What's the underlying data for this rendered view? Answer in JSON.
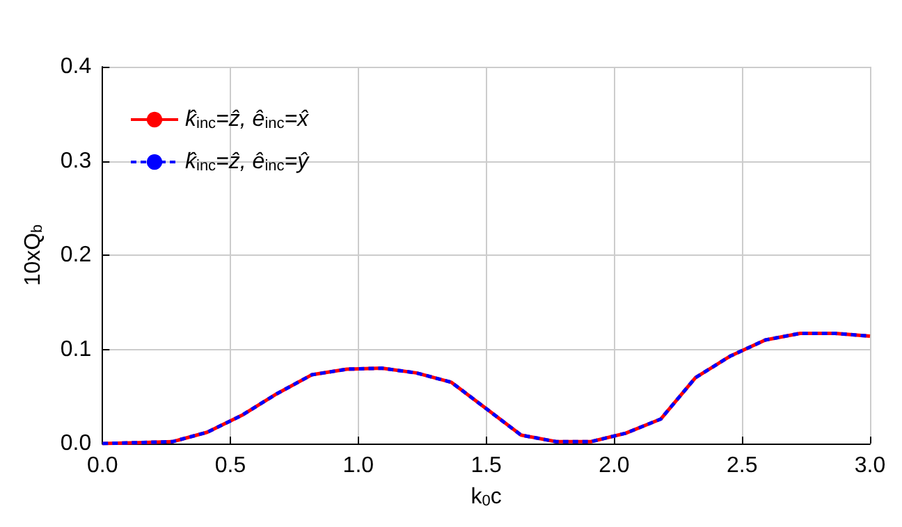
{
  "chart_data": {
    "type": "line",
    "xlabel": "k$_{0}$c",
    "ylabel": "10xQ$_{b}$",
    "x": [
      0,
      0.136,
      0.273,
      0.409,
      0.545,
      0.682,
      0.818,
      0.955,
      1.091,
      1.227,
      1.364,
      1.5,
      1.636,
      1.773,
      1.909,
      2.045,
      2.182,
      2.318,
      2.455,
      2.591,
      2.727,
      2.864,
      3.0
    ],
    "series": [
      {
        "name": "k̂$_{inc}$=ẑ, ê$_{inc}$=x̂",
        "color": "#ff0000",
        "line_style": "solid",
        "values": [
          0,
          0.001,
          0.002,
          0.012,
          0.03,
          0.053,
          0.073,
          0.079,
          0.08,
          0.075,
          0.065,
          0.037,
          0.009,
          0.002,
          0.002,
          0.011,
          0.026,
          0.07,
          0.093,
          0.11,
          0.117,
          0.117,
          0.114
        ]
      },
      {
        "name": "k̂$_{inc}$=ẑ, ê$_{inc}$=ŷ",
        "color": "#0000ff",
        "line_style": "dashed",
        "values": [
          0,
          0.001,
          0.002,
          0.012,
          0.03,
          0.053,
          0.073,
          0.079,
          0.08,
          0.075,
          0.065,
          0.037,
          0.009,
          0.002,
          0.002,
          0.011,
          0.026,
          0.07,
          0.093,
          0.11,
          0.117,
          0.117,
          0.114
        ]
      }
    ],
    "xlim": [
      0,
      3
    ],
    "xticks": [
      {
        "value": 0,
        "label": "0.0"
      },
      0.5,
      {
        "value": 1,
        "label": "1.0"
      },
      1.5,
      {
        "value": 2,
        "label": "2.0"
      },
      2.5,
      {
        "value": 3,
        "label": "3.0"
      }
    ],
    "ylim": [
      0,
      0.4
    ],
    "yticks": [
      {
        "value": 0,
        "label": "0.0"
      },
      0.1,
      0.2,
      0.3,
      0.4
    ],
    "grid": true,
    "legend": "top left",
    "marker": "none"
  }
}
